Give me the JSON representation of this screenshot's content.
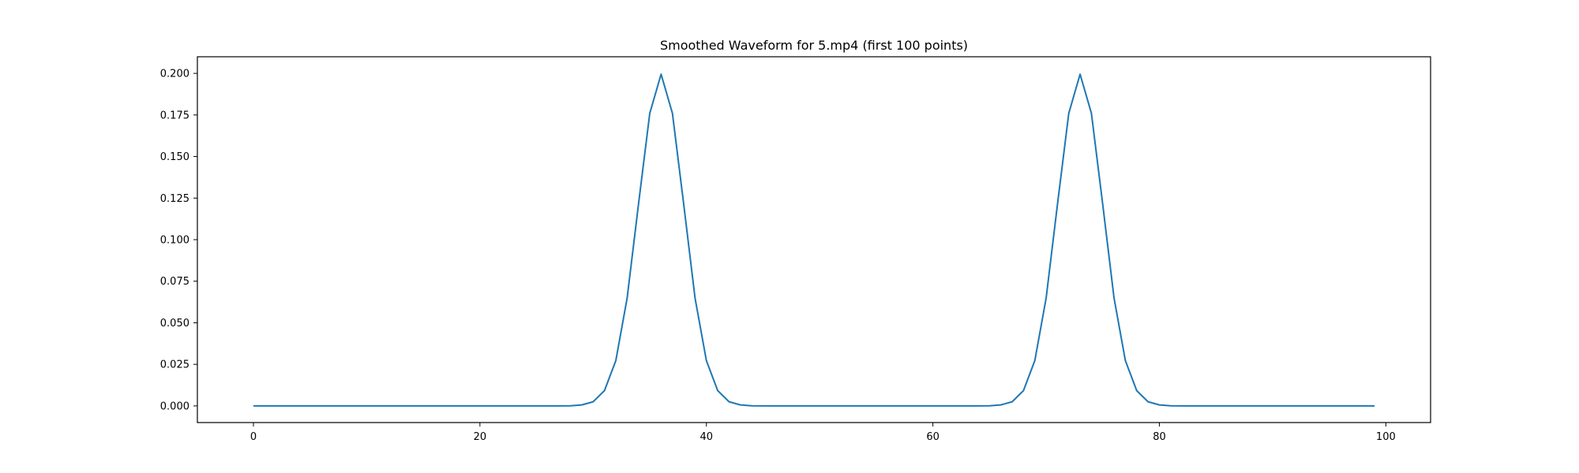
{
  "chart_data": {
    "type": "line",
    "title": "Smoothed Waveform for 5.mp4 (first 100 points)",
    "xlabel": "",
    "ylabel": "",
    "xlim": [
      -4.95,
      103.95
    ],
    "ylim": [
      -0.01,
      0.21
    ],
    "xticks": [
      0,
      20,
      40,
      60,
      80,
      100
    ],
    "xtick_labels": [
      "0",
      "20",
      "40",
      "60",
      "80",
      "100"
    ],
    "yticks": [
      0.0,
      0.025,
      0.05,
      0.075,
      0.1,
      0.125,
      0.15,
      0.175,
      0.2
    ],
    "ytick_labels": [
      "0.000",
      "0.025",
      "0.050",
      "0.075",
      "0.100",
      "0.125",
      "0.150",
      "0.175",
      "0.200"
    ],
    "grid": false,
    "color": "#1f77b4",
    "series": [
      {
        "x": [
          0,
          1,
          2,
          3,
          4,
          5,
          6,
          7,
          8,
          9,
          10,
          11,
          12,
          13,
          14,
          15,
          16,
          17,
          18,
          19,
          20,
          21,
          22,
          23,
          24,
          25,
          26,
          27,
          28,
          29,
          30,
          31,
          32,
          33,
          34,
          35,
          36,
          37,
          38,
          39,
          40,
          41,
          42,
          43,
          44,
          45,
          46,
          47,
          48,
          49,
          50,
          51,
          52,
          53,
          54,
          55,
          56,
          57,
          58,
          59,
          60,
          61,
          62,
          63,
          64,
          65,
          66,
          67,
          68,
          69,
          70,
          71,
          72,
          73,
          74,
          75,
          76,
          77,
          78,
          79,
          80,
          81,
          82,
          83,
          84,
          85,
          86,
          87,
          88,
          89,
          90,
          91,
          92,
          93,
          94,
          95,
          96,
          97,
          98,
          99
        ],
        "y": [
          0,
          0,
          0,
          0,
          0,
          0,
          0,
          0,
          0,
          0,
          0,
          0,
          0,
          0,
          0,
          0,
          0,
          0,
          0,
          0,
          0,
          0,
          0,
          0,
          0,
          0,
          0,
          0,
          0.0001,
          0.0006,
          0.0025,
          0.0092,
          0.0272,
          0.0648,
          0.1211,
          0.176,
          0.1995,
          0.176,
          0.1211,
          0.0648,
          0.0272,
          0.0092,
          0.0025,
          0.0006,
          0.0001,
          0,
          0,
          0,
          0,
          0,
          0,
          0,
          0,
          0,
          0,
          0,
          0,
          0,
          0,
          0,
          0,
          0,
          0,
          0,
          0,
          0.0001,
          0.0006,
          0.0025,
          0.0092,
          0.0272,
          0.0648,
          0.1211,
          0.176,
          0.1995,
          0.176,
          0.1211,
          0.0648,
          0.0272,
          0.0092,
          0.0025,
          0.0006,
          0.0001,
          0,
          0,
          0,
          0,
          0,
          0,
          0,
          0,
          0,
          0,
          0,
          0,
          0,
          0,
          0,
          0,
          0,
          0
        ]
      }
    ]
  }
}
